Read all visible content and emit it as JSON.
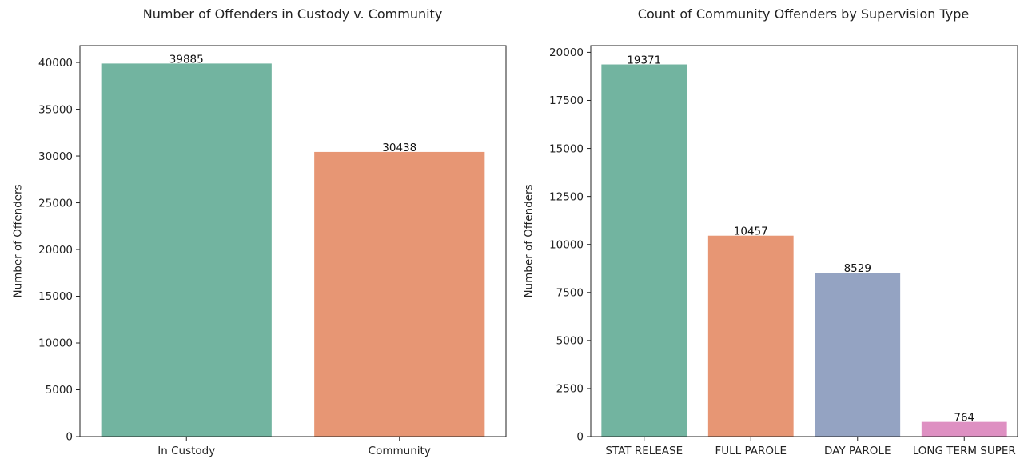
{
  "chart_data": [
    {
      "type": "bar",
      "title": "Number of Offenders in Custody v. Community",
      "xlabel": "",
      "ylabel": "Number of Offenders",
      "categories": [
        "In Custody",
        "Community"
      ],
      "values": [
        39885,
        30438
      ],
      "data_labels": [
        "39885",
        "30438"
      ],
      "colors": [
        "#72b4a0",
        "#e79674"
      ],
      "ylim": [
        0,
        41800
      ],
      "yticks": [
        0,
        5000,
        10000,
        15000,
        20000,
        25000,
        30000,
        35000,
        40000
      ],
      "ytick_labels": [
        "0",
        "5000",
        "10000",
        "15000",
        "20000",
        "25000",
        "30000",
        "35000",
        "40000"
      ],
      "grid": false,
      "legend": "none"
    },
    {
      "type": "bar",
      "title": "Count of Community Offenders by Supervision Type",
      "xlabel": "",
      "ylabel": "Number of Offenders",
      "categories": [
        "STAT RELEASE",
        "FULL PAROLE",
        "DAY PAROLE",
        "LONG TERM SUPER"
      ],
      "values": [
        19371,
        10457,
        8529,
        764
      ],
      "data_labels": [
        "19371",
        "10457",
        "8529",
        "764"
      ],
      "colors": [
        "#72b4a0",
        "#e79674",
        "#94a3c2",
        "#de90c2"
      ],
      "ylim": [
        0,
        20350
      ],
      "yticks": [
        0,
        2500,
        5000,
        7500,
        10000,
        12500,
        15000,
        17500,
        20000
      ],
      "ytick_labels": [
        "0",
        "2500",
        "5000",
        "7500",
        "10000",
        "12500",
        "15000",
        "17500",
        "20000"
      ],
      "grid": false,
      "legend": "none"
    }
  ]
}
